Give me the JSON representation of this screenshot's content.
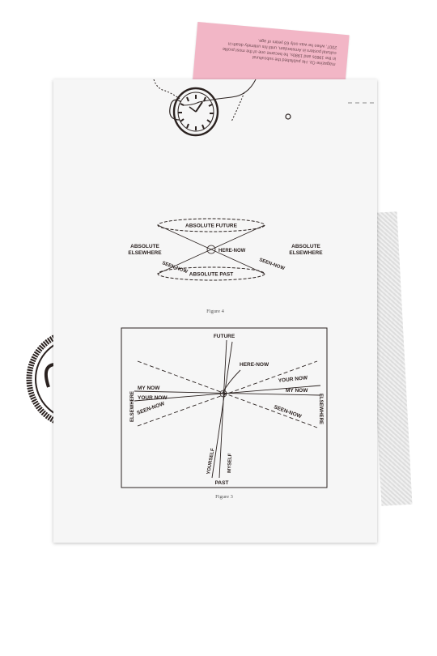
{
  "pink_card": {
    "lines": [
      "magazine Oz. He published the subcultural",
      "in the 1960s and 1980s, he became one of the most profile",
      "cultural posters in Amsterdam, until his untimely death in",
      "2007, when he was only 63 years of age."
    ]
  },
  "figure4": {
    "caption": "Figure 4",
    "labels": {
      "absolute_future": "ABSOLUTE FUTURE",
      "absolute_past": "ABSOLUTE PAST",
      "absolute_elsewhere_left_1": "ABSOLUTE",
      "absolute_elsewhere_left_2": "ELSEWHERE",
      "absolute_elsewhere_right_1": "ABSOLUTE",
      "absolute_elsewhere_right_2": "ELSEWHERE",
      "here_now": "HERE-NOW",
      "seen_now_left": "SEEN-NOW",
      "seen_now_right": "SEEN-NOW"
    }
  },
  "figure3": {
    "caption": "Figure 3",
    "labels": {
      "future": "FUTURE",
      "past": "PAST",
      "here_now": "HERE-NOW",
      "my_now_left": "MY NOW",
      "your_now_left": "YOUR NOW",
      "seen_now_left": "SEEN-NOW",
      "elsewhere_left": "ELSEWHERE",
      "your_now_right": "YOUR NOW",
      "my_now_right": "MY NOW",
      "seen_now_right": "SEEN-NOW",
      "elsewhere_right": "ELSEWHERE",
      "yourself": "YOURSELF",
      "myself": "MYSELF"
    }
  }
}
